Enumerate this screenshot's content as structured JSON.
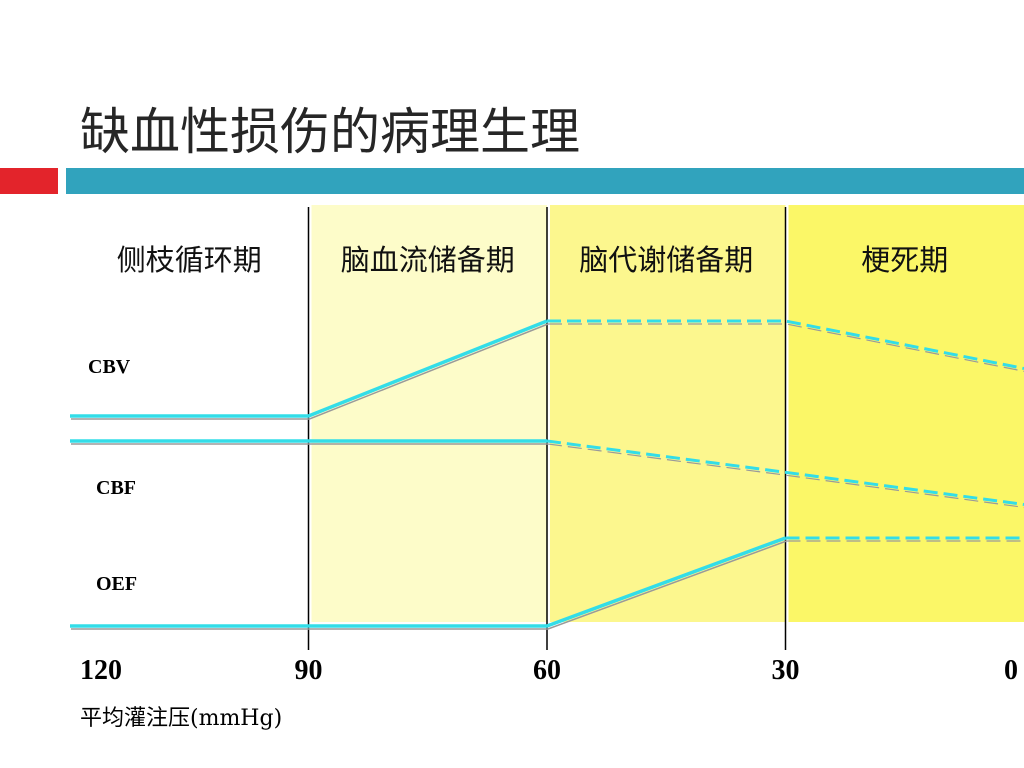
{
  "title": "缺血性损伤的病理生理",
  "colors": {
    "accent_red": "#e3242b",
    "accent_teal": "#31a3bd",
    "line": "#33dde8",
    "zone_light": "#fdfcc9",
    "zone_mid": "#fcf78e",
    "zone_strong": "#fbf767"
  },
  "chart_data": {
    "type": "line",
    "x_axis": {
      "label": "平均灌注压(mmHg)",
      "reversed": true,
      "range": [
        120,
        0
      ],
      "ticks": [
        120,
        90,
        60,
        30,
        0
      ]
    },
    "phases": [
      {
        "label": "侧枝循环期",
        "from": 120,
        "to": 90,
        "color": "#ffffff"
      },
      {
        "label": "脑血流储备期",
        "from": 90,
        "to": 60,
        "color": "#fdfcc9"
      },
      {
        "label": "脑代谢储备期",
        "from": 60,
        "to": 30,
        "color": "#fcf78e"
      },
      {
        "label": "梗死期",
        "from": 30,
        "to": 0,
        "color": "#fbf767"
      }
    ],
    "series": [
      {
        "name": "CBV",
        "points": [
          [
            120,
            0.0
          ],
          [
            90,
            0.0
          ],
          [
            60,
            1.0
          ],
          [
            30,
            1.0
          ],
          [
            0,
            0.5
          ]
        ],
        "solid_until": 60
      },
      {
        "name": "CBF",
        "points": [
          [
            120,
            1.0
          ],
          [
            90,
            1.0
          ],
          [
            60,
            1.0
          ],
          [
            30,
            0.64
          ],
          [
            0,
            0.27
          ]
        ],
        "solid_until": 60
      },
      {
        "name": "OEF",
        "points": [
          [
            120,
            0.0
          ],
          [
            90,
            0.0
          ],
          [
            60,
            0.0
          ],
          [
            30,
            1.0
          ],
          [
            0,
            1.0
          ]
        ],
        "solid_until": 30
      }
    ],
    "grid": false
  }
}
